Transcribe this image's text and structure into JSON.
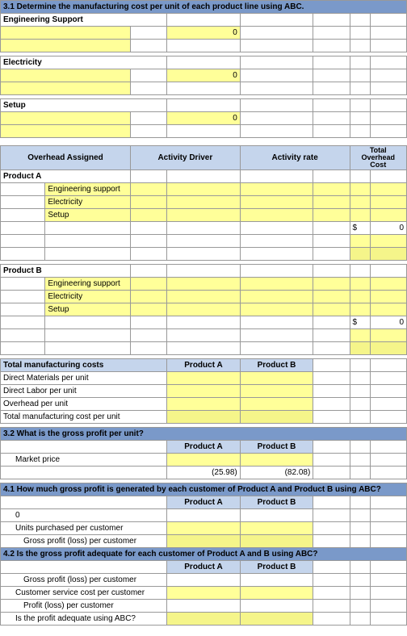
{
  "s31": {
    "title": "3.1  Determine the manufacturing cost per unit of each product line using ABC.",
    "engSupport": {
      "label": "Engineering Support",
      "value": "0"
    },
    "electricity": {
      "label": "Electricity",
      "value": "0"
    },
    "setup": {
      "label": "Setup",
      "value": "0"
    }
  },
  "overhead": {
    "headers": {
      "assigned": "Overhead Assigned",
      "driver": "Activity Driver",
      "rate": "Activity rate",
      "total": "Total Overhead Cost"
    },
    "productA": {
      "label": "Product A",
      "rows": [
        "Engineering support",
        "Electricity",
        "Setup"
      ],
      "sumSym": "$",
      "sumVal": "0"
    },
    "productB": {
      "label": "Product B",
      "rows": [
        "Engineering support",
        "Electricity",
        "Setup"
      ],
      "sumSym": "$",
      "sumVal": "0"
    }
  },
  "totalMfg": {
    "title": "Total manufacturing costs",
    "colA": "Product A",
    "colB": "Product B",
    "rows": [
      "Direct Materials per unit",
      "Direct Labor per unit",
      "Overhead per unit",
      "Total manufacturing cost per unit"
    ]
  },
  "s32": {
    "title": "3.2  What is the gross profit per unit?",
    "colA": "Product A",
    "colB": "Product B",
    "marketPrice": "Market price",
    "valA": "(25.98)",
    "valB": "(82.08)"
  },
  "s41": {
    "title": "4.1  How much gross profit is generated by each customer of Product A and Product B using ABC?",
    "colA": "Product A",
    "colB": "Product B",
    "rows": [
      "0",
      "Units purchased per customer",
      "Gross profit (loss) per customer"
    ]
  },
  "s42": {
    "title": "4.2  Is the gross profit adequate for each customer of Product A and B using ABC?",
    "colA": "Product A",
    "colB": "Product B",
    "rows": [
      "Gross profit (loss) per customer",
      "Customer service cost per customer",
      "Profit (loss) per customer",
      "Is the profit adequate using ABC?"
    ]
  }
}
